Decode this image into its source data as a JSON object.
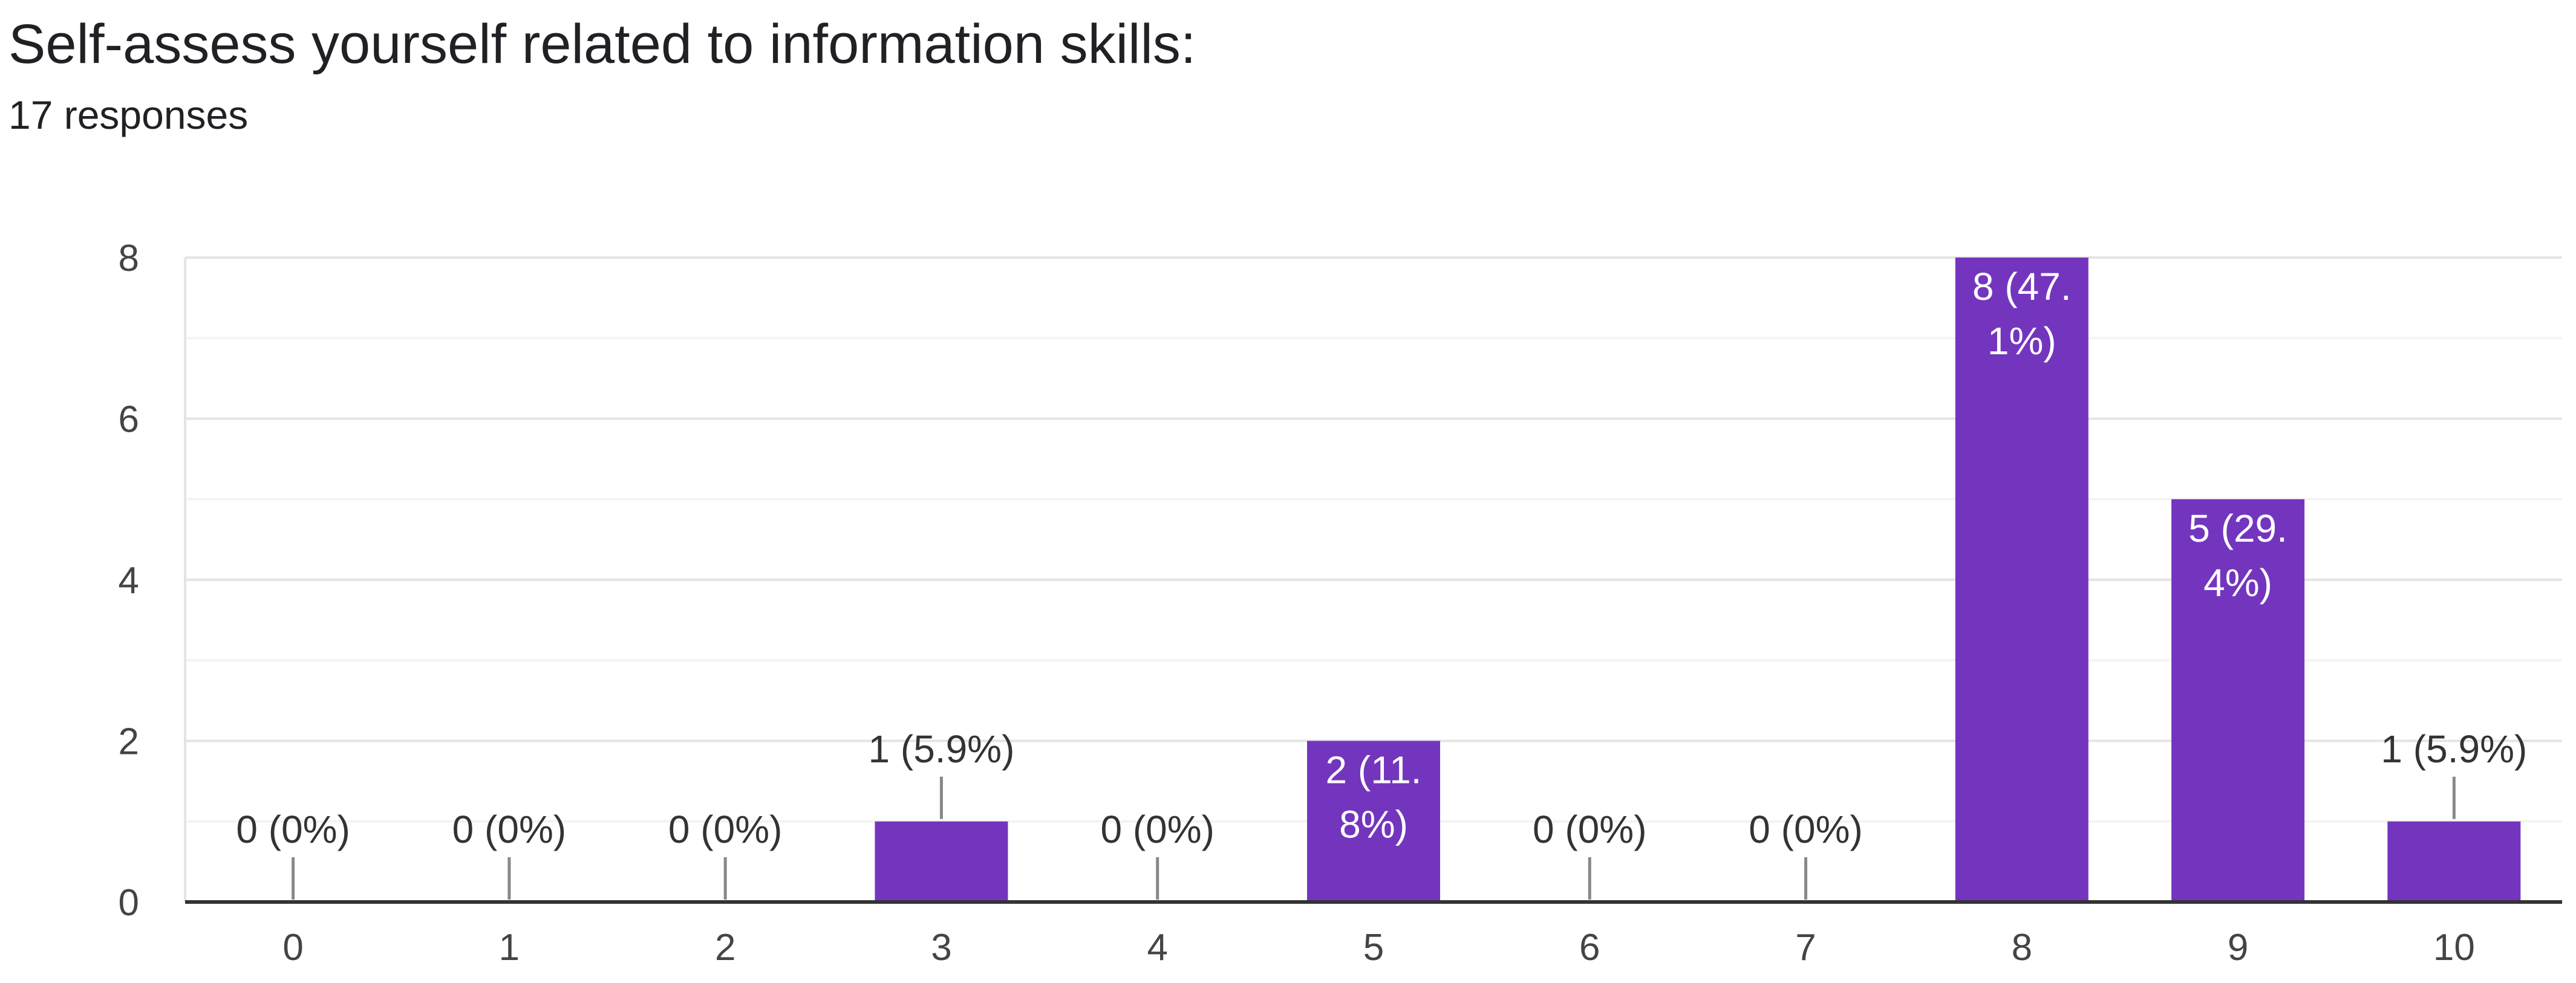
{
  "header": {
    "title": "Self-assess yourself related to information skills:",
    "responses": "17 responses"
  },
  "colors": {
    "bar": "#7335be",
    "axis": "#333333",
    "grid_major": "#e4e4e4",
    "grid_minor": "#f3f3f3",
    "text": "#444444",
    "label_inside": "#ffffff",
    "label_outside": "#333333",
    "leader": "#888888"
  },
  "chart_data": {
    "type": "bar",
    "title": "Self-assess yourself related to information skills:",
    "subtitle": "17 responses",
    "categories": [
      "0",
      "1",
      "2",
      "3",
      "4",
      "5",
      "6",
      "7",
      "8",
      "9",
      "10"
    ],
    "values": [
      0,
      0,
      0,
      1,
      0,
      2,
      0,
      0,
      8,
      5,
      1
    ],
    "data_labels": [
      "0 (0%)",
      "0 (0%)",
      "0 (0%)",
      "1 (5.9%)",
      "0 (0%)",
      "2 (11.8%)",
      "0 (0%)",
      "0 (0%)",
      "8 (47.1%)",
      "5 (29.4%)",
      "1 (5.9%)"
    ],
    "label_lines": [
      [
        "0 (0%)"
      ],
      [
        "0 (0%)"
      ],
      [
        "0 (0%)"
      ],
      [
        "1 (5.9%)"
      ],
      [
        "0 (0%)"
      ],
      [
        "2 (11.",
        "8%)"
      ],
      [
        "0 (0%)"
      ],
      [
        "0 (0%)"
      ],
      [
        "8 (47.",
        "1%)"
      ],
      [
        "5 (29.",
        "4%)"
      ],
      [
        "1 (5.9%)"
      ]
    ],
    "label_inside": [
      false,
      false,
      false,
      false,
      false,
      true,
      false,
      false,
      true,
      true,
      false
    ],
    "y_ticks": [
      "0",
      "2",
      "4",
      "6",
      "8"
    ],
    "ylim": [
      0,
      8
    ],
    "xlabel": "",
    "ylabel": "",
    "grid": true
  }
}
